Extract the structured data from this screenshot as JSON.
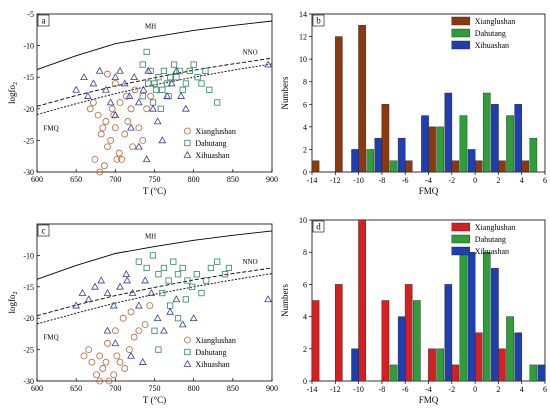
{
  "colors": {
    "xianglushan": "#b5653a",
    "dahutang": "#2e8b57",
    "xihuashan": "#3a3aa8",
    "bar_xianglushan": "#d42020",
    "bar_xianglushan_b": "#8b3a10",
    "bar_dahutang": "#2f9e3a",
    "bar_xihuashan": "#1f3fb0"
  },
  "chart_data": [
    {
      "type": "scatter",
      "panel_label": "a",
      "xlabel": "T (°C)",
      "ylabel": "logfO2",
      "ylabel_main": "logfo",
      "ylabel_sub": "2",
      "xlim": [
        600,
        900
      ],
      "ylim": [
        -30,
        -5
      ],
      "xticks": [
        "600",
        "650",
        "700",
        "750",
        "800",
        "850",
        "900"
      ],
      "yticks": [
        "-5",
        "-10",
        "-15",
        "-20",
        "-25",
        "-30"
      ],
      "curve_labels": {
        "mh": "MH",
        "nno": "NNO",
        "fmq": "FMQ"
      },
      "legend": [
        "Xianglushan",
        "Dahutang",
        "Xihuashan"
      ],
      "series": [
        {
          "name": "Xianglushan",
          "marker": "circle",
          "points": [
            [
              668,
              -20
            ],
            [
              672,
              -19
            ],
            [
              678,
              -21
            ],
            [
              682,
              -24
            ],
            [
              684,
              -23
            ],
            [
              688,
              -22
            ],
            [
              690,
              -26
            ],
            [
              694,
              -25
            ],
            [
              698,
              -21
            ],
            [
              700,
              -23
            ],
            [
              702,
              -28
            ],
            [
              705,
              -27
            ],
            [
              708,
              -28
            ],
            [
              712,
              -24
            ],
            [
              716,
              -22
            ],
            [
              720,
              -20
            ],
            [
              725,
              -17
            ],
            [
              730,
              -23
            ],
            [
              735,
              -25
            ],
            [
              740,
              -20
            ],
            [
              745,
              -18
            ],
            [
              674,
              -28
            ],
            [
              680,
              -30
            ],
            [
              686,
              -29
            ],
            [
              696,
              -20
            ],
            [
              706,
              -19
            ],
            [
              714,
              -18
            ],
            [
              722,
              -26
            ],
            [
              700,
              -16
            ],
            [
              690,
              -14.5
            ]
          ]
        },
        {
          "name": "Dahutang",
          "marker": "square",
          "points": [
            [
              740,
              -11
            ],
            [
              735,
              -13
            ],
            [
              745,
              -14
            ],
            [
              750,
              -16
            ],
            [
              755,
              -15
            ],
            [
              760,
              -17
            ],
            [
              762,
              -14
            ],
            [
              766,
              -16
            ],
            [
              770,
              -15
            ],
            [
              775,
              -13
            ],
            [
              778,
              -15
            ],
            [
              782,
              -14
            ],
            [
              786,
              -17
            ],
            [
              790,
              -16
            ],
            [
              795,
              -14
            ],
            [
              800,
              -13
            ],
            [
              805,
              -15
            ],
            [
              810,
              -16
            ],
            [
              815,
              -14
            ],
            [
              820,
              -17
            ],
            [
              830,
              -19
            ],
            [
              735,
              -18
            ],
            [
              748,
              -19
            ],
            [
              758,
              -20
            ],
            [
              768,
              -18
            ],
            [
              742,
              -16
            ],
            [
              752,
              -17
            ]
          ]
        },
        {
          "name": "Xihuashan",
          "marker": "triangle",
          "points": [
            [
              650,
              -17
            ],
            [
              660,
              -15
            ],
            [
              665,
              -18
            ],
            [
              672,
              -16
            ],
            [
              680,
              -14
            ],
            [
              688,
              -17
            ],
            [
              694,
              -19
            ],
            [
              700,
              -15
            ],
            [
              706,
              -14
            ],
            [
              712,
              -16
            ],
            [
              718,
              -18
            ],
            [
              724,
              -15
            ],
            [
              730,
              -19
            ],
            [
              736,
              -17
            ],
            [
              742,
              -14
            ],
            [
              748,
              -20
            ],
            [
              754,
              -22
            ],
            [
              760,
              -25
            ],
            [
              766,
              -18
            ],
            [
              772,
              -16
            ],
            [
              778,
              -14
            ],
            [
              784,
              -18
            ],
            [
              790,
              -20
            ],
            [
              720,
              -23
            ],
            [
              730,
              -26
            ],
            [
              740,
              -28
            ],
            [
              700,
              -21
            ],
            [
              895,
              -13
            ]
          ]
        }
      ]
    },
    {
      "type": "bar",
      "panel_label": "b",
      "xlabel": "FMQ",
      "ylabel": "Numbers",
      "ylim": [
        0,
        14
      ],
      "xlim": [
        -14,
        6
      ],
      "xticks": [
        "-14",
        "-12",
        "-10",
        "-8",
        "-6",
        "-4",
        "-2",
        "0",
        "2",
        "4",
        "6"
      ],
      "yticks": [
        "0",
        "2",
        "4",
        "6",
        "8",
        "10",
        "12",
        "14"
      ],
      "legend": [
        "Xianglushan",
        "Dahutang",
        "Xihuashan"
      ],
      "series": [
        {
          "name": "Xianglushan",
          "values": [
            [
              -13.7,
              1
            ],
            [
              -11.7,
              12
            ],
            [
              -9.7,
              13
            ],
            [
              -7.7,
              6
            ],
            [
              -5.7,
              1
            ],
            [
              -3.7,
              4
            ],
            [
              -1.7,
              1
            ],
            [
              0.3,
              1
            ],
            [
              2.3,
              1
            ],
            [
              4.3,
              1
            ]
          ]
        },
        {
          "name": "Dahutang",
          "values": [
            [
              -9,
              2
            ],
            [
              -7,
              1
            ],
            [
              -3,
              4
            ],
            [
              -1,
              5
            ],
            [
              1,
              7
            ],
            [
              3,
              5
            ],
            [
              5,
              3
            ]
          ]
        },
        {
          "name": "Xihuashan",
          "values": [
            [
              -10.3,
              2
            ],
            [
              -8.3,
              3
            ],
            [
              -6.3,
              3
            ],
            [
              -4.3,
              5
            ],
            [
              -2.3,
              7
            ],
            [
              -0.3,
              2
            ],
            [
              1.7,
              6
            ],
            [
              3.7,
              6
            ]
          ]
        }
      ]
    },
    {
      "type": "scatter",
      "panel_label": "c",
      "xlabel": "T (°C)",
      "ylabel": "logfO2",
      "ylabel_main": "logfo",
      "ylabel_sub": "2",
      "xlim": [
        600,
        900
      ],
      "ylim": [
        -30,
        -5
      ],
      "xticks": [
        "600",
        "650",
        "700",
        "750",
        "800",
        "850",
        "900"
      ],
      "yticks": [
        "-10",
        "-15",
        "-20",
        "-25",
        "-30"
      ],
      "curve_labels": {
        "mh": "MH",
        "nno": "NNO",
        "fmq": "FMQ"
      },
      "legend": [
        "Xianglushan",
        "Dahutang",
        "Xihuashan"
      ],
      "series": [
        {
          "name": "Xianglushan",
          "marker": "circle",
          "points": [
            [
              660,
              -26
            ],
            [
              666,
              -25
            ],
            [
              670,
              -27
            ],
            [
              676,
              -29
            ],
            [
              680,
              -26
            ],
            [
              684,
              -28
            ],
            [
              688,
              -27
            ],
            [
              692,
              -30
            ],
            [
              698,
              -29
            ],
            [
              702,
              -26
            ],
            [
              706,
              -27
            ],
            [
              712,
              -28
            ],
            [
              718,
              -25
            ],
            [
              724,
              -23
            ],
            [
              730,
              -22
            ],
            [
              738,
              -21
            ],
            [
              744,
              -18
            ],
            [
              680,
              -30
            ],
            [
              690,
              -24
            ],
            [
              700,
              -22
            ],
            [
              710,
              -20
            ],
            [
              720,
              -19
            ]
          ]
        },
        {
          "name": "Dahutang",
          "marker": "square",
          "points": [
            [
              730,
              -11
            ],
            [
              740,
              -12
            ],
            [
              748,
              -10
            ],
            [
              755,
              -13
            ],
            [
              762,
              -12
            ],
            [
              768,
              -14
            ],
            [
              774,
              -11
            ],
            [
              780,
              -13
            ],
            [
              786,
              -12
            ],
            [
              792,
              -14
            ],
            [
              798,
              -15
            ],
            [
              804,
              -13
            ],
            [
              810,
              -16
            ],
            [
              816,
              -14
            ],
            [
              822,
              -12
            ],
            [
              830,
              -11
            ],
            [
              840,
              -13
            ],
            [
              760,
              -16
            ],
            [
              770,
              -18
            ],
            [
              780,
              -20
            ],
            [
              750,
              -22
            ],
            [
              755,
              -25
            ],
            [
              790,
              -17
            ],
            [
              845,
              -12
            ]
          ]
        },
        {
          "name": "Xihuashan",
          "marker": "triangle",
          "points": [
            [
              650,
              -18
            ],
            [
              658,
              -16
            ],
            [
              666,
              -17
            ],
            [
              674,
              -15
            ],
            [
              682,
              -14
            ],
            [
              690,
              -16
            ],
            [
              698,
              -18
            ],
            [
              706,
              -15
            ],
            [
              714,
              -13
            ],
            [
              722,
              -16
            ],
            [
              730,
              -18
            ],
            [
              738,
              -14
            ],
            [
              746,
              -16
            ],
            [
              754,
              -20
            ],
            [
              762,
              -22
            ],
            [
              770,
              -19
            ],
            [
              778,
              -17
            ],
            [
              786,
              -21
            ],
            [
              800,
              -20
            ],
            [
              690,
              -22
            ],
            [
              700,
              -24
            ],
            [
              720,
              -26
            ],
            [
              735,
              -27
            ],
            [
              715,
              -14
            ],
            [
              895,
              -17
            ]
          ]
        }
      ]
    },
    {
      "type": "bar",
      "panel_label": "d",
      "xlabel": "FMQ",
      "ylabel": "Numbers",
      "ylim": [
        0,
        10
      ],
      "xlim": [
        -14,
        6
      ],
      "xticks": [
        "-14",
        "-12",
        "-10",
        "-8",
        "-6",
        "-4",
        "-2",
        "0",
        "2",
        "4",
        "6"
      ],
      "yticks": [
        "0",
        "2",
        "4",
        "6",
        "8",
        "10"
      ],
      "legend": [
        "Xianglushan",
        "Dahutang",
        "Xihuashan"
      ],
      "series": [
        {
          "name": "Xianglushan",
          "values": [
            [
              -13.7,
              5
            ],
            [
              -11.7,
              6
            ],
            [
              -9.7,
              10
            ],
            [
              -7.7,
              5
            ],
            [
              -5.7,
              6
            ],
            [
              -3.7,
              2
            ],
            [
              -1.7,
              1
            ],
            [
              0.3,
              3
            ],
            [
              2.3,
              2
            ]
          ]
        },
        {
          "name": "Dahutang",
          "values": [
            [
              -7,
              1
            ],
            [
              -5,
              5
            ],
            [
              -3,
              2
            ],
            [
              -1,
              8
            ],
            [
              1,
              8
            ],
            [
              3,
              4
            ],
            [
              5,
              1
            ]
          ]
        },
        {
          "name": "Xihuashan",
          "values": [
            [
              -10.3,
              2
            ],
            [
              -6.3,
              4
            ],
            [
              -2.3,
              6
            ],
            [
              -0.3,
              8
            ],
            [
              1.7,
              7
            ],
            [
              3.7,
              3
            ],
            [
              5.7,
              1
            ]
          ]
        }
      ]
    }
  ]
}
